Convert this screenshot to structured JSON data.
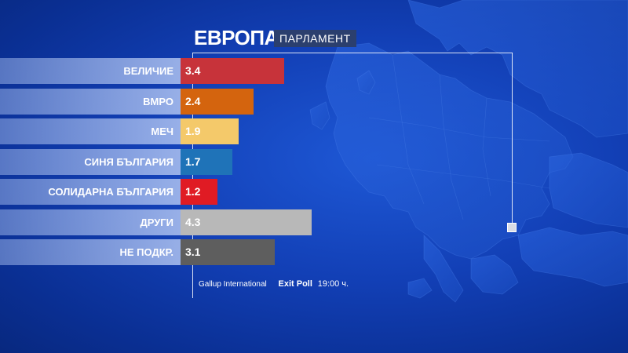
{
  "header": {
    "title": "ЕВРОПА",
    "subtitle": "ПАРЛАМЕНТ"
  },
  "source": {
    "organization": "Gallup International",
    "poll_label": "Exit Poll",
    "time": "19:00 ч."
  },
  "colors": {
    "background": "#123fb5",
    "label_band": "#a9bff0",
    "marker": "#d9dde6"
  },
  "chart_data": {
    "type": "bar",
    "orientation": "horizontal",
    "title": "ЕВРОПА",
    "subtitle": "ПАРЛАМЕНТ",
    "xlim": [
      0,
      4.5
    ],
    "grid": false,
    "categories": [
      "ВЕЛИЧИЕ",
      "ВМРО",
      "МЕЧ",
      "СИНЯ БЪЛГАРИЯ",
      "СОЛИДАРНА БЪЛГАРИЯ",
      "ДРУГИ",
      "НЕ ПОДКР."
    ],
    "values": [
      3.4,
      2.4,
      1.9,
      1.7,
      1.2,
      4.3,
      3.1
    ],
    "value_labels": [
      "3.4",
      "2.4",
      "1.9",
      "1.7",
      "1.2",
      "4.3",
      "3.1"
    ],
    "bar_colors": [
      "#c7333a",
      "#d4640e",
      "#f4c96a",
      "#1f73b8",
      "#e01b24",
      "#b8b8b8",
      "#5e5e5e"
    ],
    "value_text_colors": [
      "#ffffff",
      "#ffffff",
      "#ffffff",
      "#ffffff",
      "#ffffff",
      "#ffffff",
      "#ffffff"
    ]
  }
}
